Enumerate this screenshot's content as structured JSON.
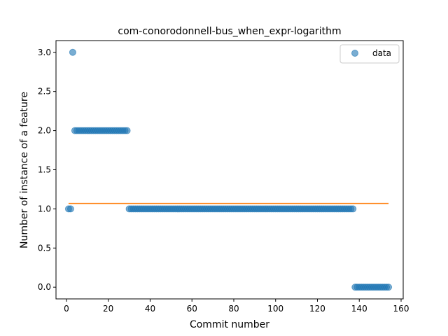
{
  "chart_data": {
    "type": "scatter",
    "title": "com-conorodonnell-bus_when_expr-logarithm",
    "xlabel": "Commit number",
    "ylabel": "Number of instance of a feature",
    "xlim": [
      -5,
      161
    ],
    "ylim": [
      -0.15,
      3.15
    ],
    "xticks": [
      0,
      20,
      40,
      60,
      80,
      100,
      120,
      140,
      160
    ],
    "yticks": [
      0.0,
      0.5,
      1.0,
      1.5,
      2.0,
      2.5,
      3.0
    ],
    "xtick_labels": [
      "0",
      "20",
      "40",
      "60",
      "80",
      "100",
      "120",
      "140",
      "160"
    ],
    "ytick_labels": [
      "0.0",
      "0.5",
      "1.0",
      "1.5",
      "2.0",
      "2.5",
      "3.0"
    ],
    "grid": false,
    "legend": {
      "placement": "upper-right",
      "entries": [
        "data"
      ]
    },
    "colors": {
      "points": "#1f77b4",
      "fit_line": "#ff7f0e"
    },
    "series": [
      {
        "name": "data",
        "kind": "scatter",
        "segments": [
          {
            "x_start": 1,
            "x_end": 2,
            "y": 1
          },
          {
            "x_start": 3,
            "x_end": 3,
            "y": 3
          },
          {
            "x_start": 4,
            "x_end": 29,
            "y": 2
          },
          {
            "x_start": 30,
            "x_end": 137,
            "y": 1
          },
          {
            "x_start": 138,
            "x_end": 154,
            "y": 0
          }
        ]
      },
      {
        "kind": "line",
        "x": [
          1,
          154
        ],
        "y": [
          1.07,
          1.07
        ]
      }
    ]
  }
}
